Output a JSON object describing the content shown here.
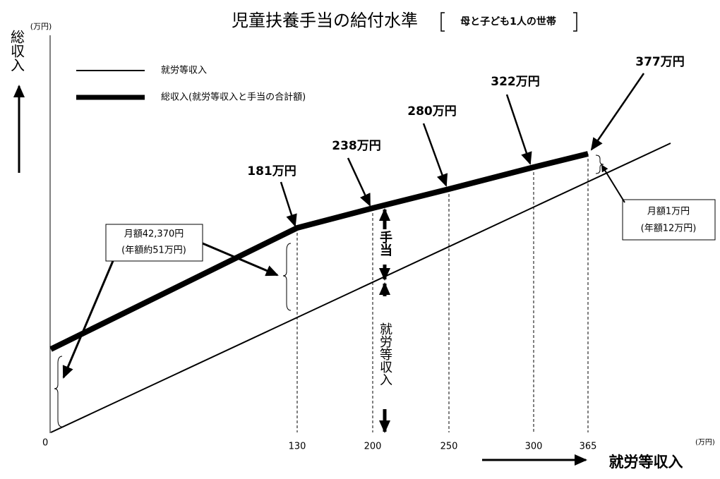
{
  "header": {
    "title": "児童扶養手当の給付水準",
    "subtitle": "母と子ども1人の世帯"
  },
  "y_axis": {
    "label": "総収入",
    "unit": "(万円)"
  },
  "x_axis": {
    "label": "就労等収入",
    "unit": "(万円)",
    "origin": "0",
    "ticks": [
      "130",
      "200",
      "250",
      "300",
      "365"
    ]
  },
  "legend": [
    {
      "label": "就労等収入"
    },
    {
      "label": "総収入(就労等収入と手当の合計額)"
    }
  ],
  "points": [
    "181万円",
    "238万円",
    "280万円",
    "322万円",
    "377万円"
  ],
  "annotations": {
    "left": [
      "月額42,370円",
      "(年額約51万円)"
    ],
    "right": [
      "月額1万円",
      "(年額12万円)"
    ],
    "allowance": "手当",
    "earned": "就労等収入"
  }
}
